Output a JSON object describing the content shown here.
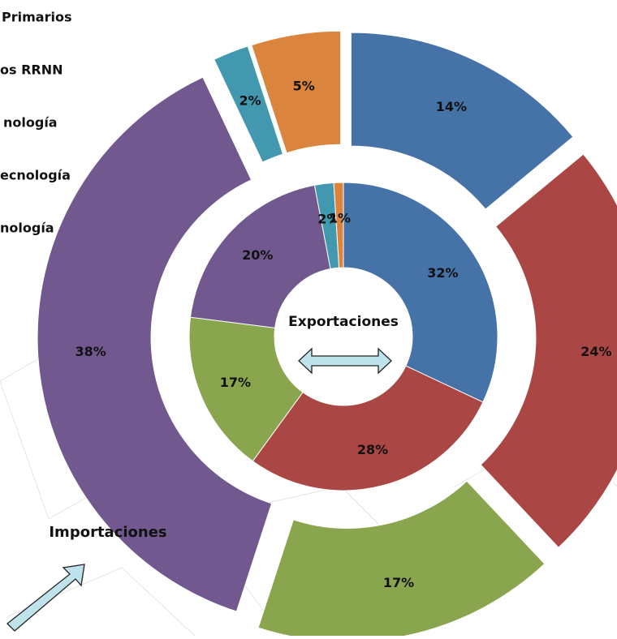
{
  "chart_data": {
    "type": "donut",
    "categories": [
      "Primarios",
      "os RRNN",
      "nología",
      "ecnología",
      "nología",
      null
    ],
    "colors": [
      "#4572a7",
      "#aa4643",
      "#89a54e",
      "#71588f",
      "#4198af",
      "#db843d"
    ],
    "series": [
      {
        "name": "Exportaciones",
        "values": [
          32,
          28,
          17,
          20,
          2,
          1
        ],
        "value_labels": [
          "32%",
          "28%",
          "17%",
          "20%",
          "2%",
          "1%"
        ]
      },
      {
        "name": "Importaciones",
        "values": [
          14,
          24,
          17,
          38,
          2,
          5
        ],
        "value_labels": [
          "14%",
          "24%",
          "17%",
          "38%",
          "2%",
          "5%"
        ],
        "exploded": true
      }
    ]
  }
}
